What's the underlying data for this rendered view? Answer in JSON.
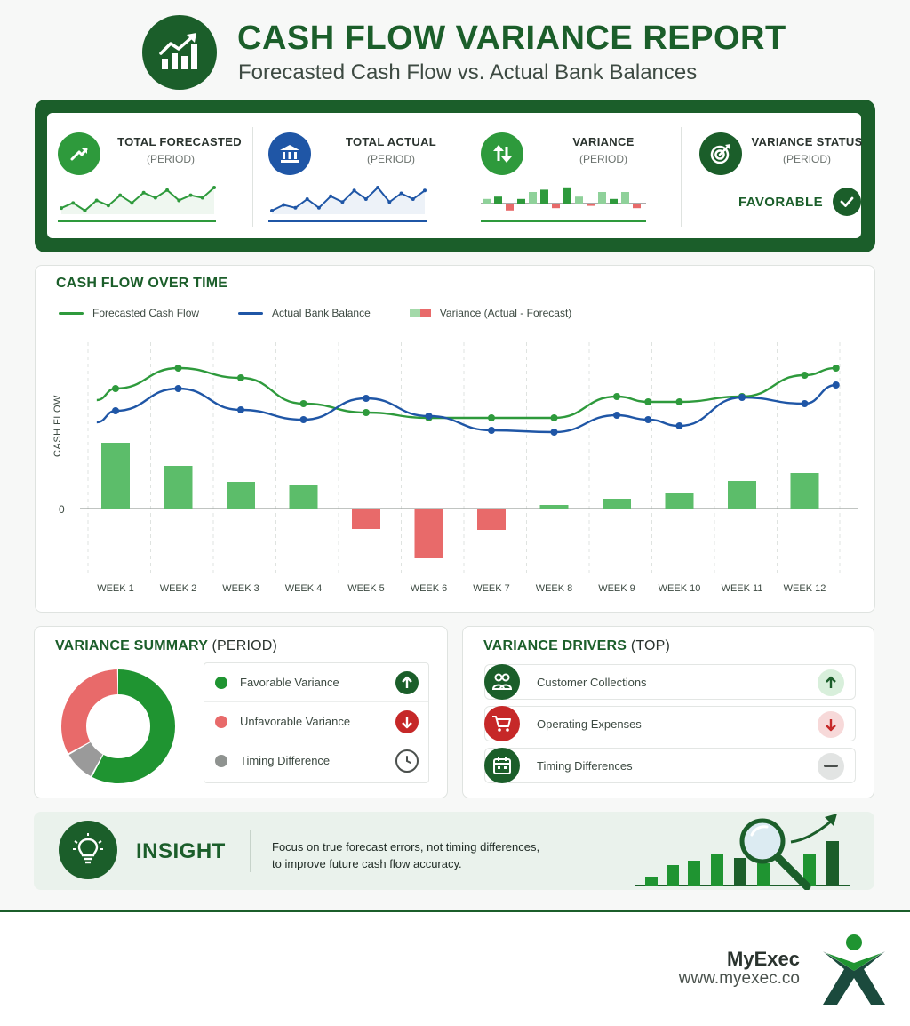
{
  "header": {
    "title": "CASH FLOW VARIANCE REPORT",
    "subtitle": "Forecasted Cash Flow vs. Actual Bank Balances",
    "logo_icon": "growth-chart-icon"
  },
  "kpis": [
    {
      "label": "TOTAL FORECASTED",
      "period": "(PERIOD)",
      "icon": "trend-up-icon",
      "color": "#2e9a3c",
      "sparkline": [
        4,
        6,
        3,
        7,
        5,
        9,
        6,
        10,
        8,
        11,
        7,
        9,
        8,
        12
      ]
    },
    {
      "label": "TOTAL ACTUAL",
      "period": "(PERIOD)",
      "icon": "bank-icon",
      "color": "#1f56a6",
      "sparkline": [
        3,
        5,
        4,
        7,
        4,
        8,
        6,
        10,
        7,
        11,
        6,
        9,
        7,
        10
      ]
    },
    {
      "label": "VARIANCE",
      "period": "(PERIOD)",
      "icon": "arrows-up-down-icon",
      "color": "#2e9a3c",
      "bars": [
        2,
        3,
        -3,
        2,
        5,
        6,
        -2,
        7,
        3,
        -1,
        5,
        2,
        5,
        -2
      ]
    },
    {
      "label": "VARIANCE STATUS",
      "period": "(PERIOD)",
      "icon": "target-icon",
      "color": "#1b5e2a",
      "status": "FAVORABLE"
    }
  ],
  "cash_flow": {
    "title": "CASH FLOW OVER TIME",
    "legend": [
      {
        "name": "Forecasted Cash Flow",
        "color": "#2e9a3c"
      },
      {
        "name": "Actual Bank Balance",
        "color": "#1f56a6"
      },
      {
        "name": "Variance (Actual - Forecast)",
        "colors": [
          "#a3d9a9",
          "#e86a6a"
        ]
      }
    ]
  },
  "chart_data": {
    "type": "bar",
    "title": "CASH FLOW OVER TIME",
    "xlabel": "",
    "ylabel": "CASH FLOW",
    "zero_label": "0",
    "categories": [
      "WEEK 1",
      "WEEK 2",
      "WEEK 3",
      "WEEK 4",
      "WEEK 5",
      "WEEK 6",
      "WEEK 7",
      "WEEK 8",
      "WEEK 9",
      "WEEK 10",
      "WEEK 11",
      "WEEK 12"
    ],
    "ylim": [
      -60,
      200
    ],
    "series": [
      {
        "name": "Variance (Actual - Forecast)",
        "type": "bar",
        "values": [
          74,
          48,
          30,
          27,
          -22,
          -55,
          -23,
          4,
          11,
          18,
          31,
          40
        ],
        "colors": {
          "positive": "#5cbd6a",
          "negative": "#e86a6a"
        }
      },
      {
        "name": "Forecasted Cash Flow",
        "type": "line",
        "color": "#2e9a3c",
        "x": [
          -0.3,
          0,
          1,
          2,
          3,
          4,
          5,
          6,
          7,
          8,
          8.5,
          9,
          10,
          11,
          11.5
        ],
        "values": [
          122,
          135,
          158,
          147,
          118,
          108,
          102,
          102,
          102,
          126,
          120,
          120,
          126,
          150,
          158
        ]
      },
      {
        "name": "Actual Bank Balance",
        "type": "line",
        "color": "#1f56a6",
        "x": [
          -0.3,
          0,
          1,
          2,
          3,
          4,
          5,
          6,
          7,
          8,
          8.5,
          9,
          10,
          11,
          11.5
        ],
        "values": [
          97,
          110,
          135,
          111,
          100,
          124,
          104,
          88,
          86,
          105,
          100,
          93,
          125,
          118,
          139
        ]
      }
    ],
    "grid": "vertical-dashed",
    "legend_position": "top-left"
  },
  "summary": {
    "title": "VARIANCE SUMMARY",
    "title_suffix": "(PERIOD)",
    "donut": [
      {
        "name": "Favorable Variance",
        "value": 58,
        "color": "#1f9431"
      },
      {
        "name": "Timing Difference",
        "value": 9,
        "color": "#9a9a9a"
      },
      {
        "name": "Unfavorable Variance",
        "value": 33,
        "color": "#e86a6a"
      }
    ],
    "items": [
      {
        "label": "Favorable Variance",
        "color": "#1f9431",
        "badge_icon": "arrow-up-icon",
        "badge_color": "#1b5e2a"
      },
      {
        "label": "Unfavorable Variance",
        "color": "#e86a6a",
        "badge_icon": "arrow-down-icon",
        "badge_color": "#c62828"
      },
      {
        "label": "Timing Difference",
        "color": "#8f9390",
        "badge_icon": "clock-icon",
        "badge_color": "#ffffff"
      }
    ]
  },
  "drivers": {
    "title": "VARIANCE DRIVERS",
    "title_suffix": "(TOP)",
    "items": [
      {
        "label": "Customer Collections",
        "icon": "users-icon",
        "icon_color": "#1b5e2a",
        "badge_icon": "arrow-up-icon",
        "badge_bg": "#d8efdb",
        "badge_fg": "#1b5e2a"
      },
      {
        "label": "Operating Expenses",
        "icon": "cart-icon",
        "icon_color": "#c62828",
        "badge_icon": "arrow-down-icon",
        "badge_bg": "#f7d9d9",
        "badge_fg": "#c62828"
      },
      {
        "label": "Timing Differences",
        "icon": "calendar-icon",
        "icon_color": "#1b5e2a",
        "badge_icon": "minus-icon",
        "badge_bg": "#e2e4e3",
        "badge_fg": "#4a4f4c"
      }
    ]
  },
  "insight": {
    "title": "INSIGHT",
    "line1": "Focus on true forecast errors, not timing differences,",
    "line2": "to improve future cash flow accuracy.",
    "icon": "lightbulb-icon"
  },
  "brand": {
    "name": "MyExec",
    "url": "www.myexec.co"
  }
}
